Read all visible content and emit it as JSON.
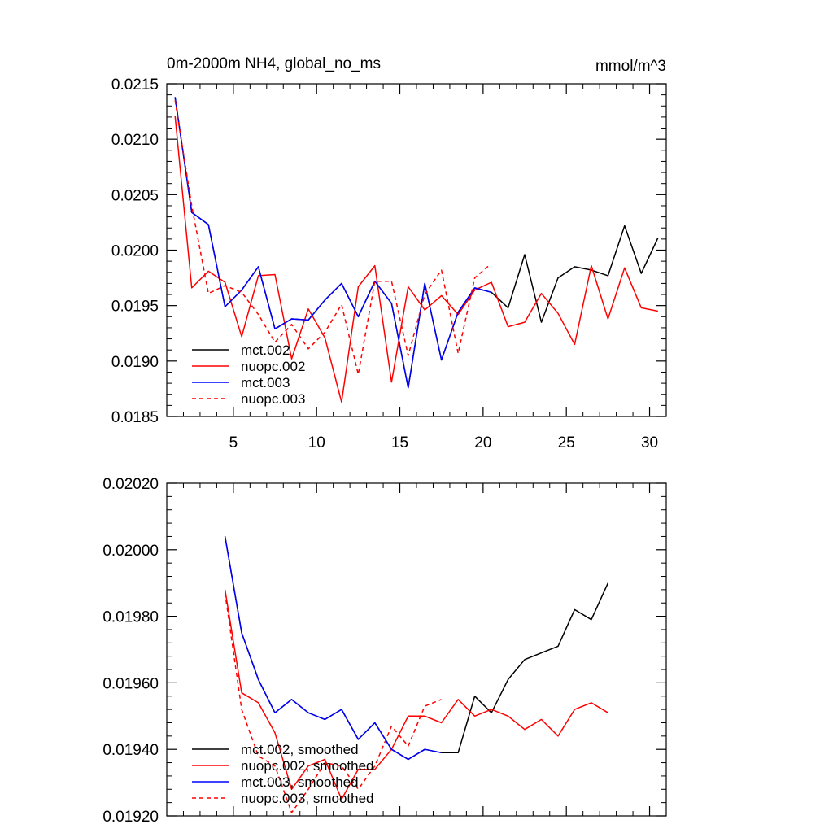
{
  "chart_data": [
    {
      "type": "line",
      "title": "0m-2000m NH4, global_no_ms",
      "units": "mmol/m^3",
      "xlim": [
        1,
        31
      ],
      "ylim": [
        0.0185,
        0.0215
      ],
      "x_ticks": [
        5,
        10,
        15,
        20,
        25,
        30
      ],
      "y_ticks": [
        0.0185,
        0.019,
        0.0195,
        0.02,
        0.0205,
        0.021,
        0.0215
      ],
      "y_tick_labels": [
        "0.0185",
        "0.0190",
        "0.0195",
        "0.0200",
        "0.0205",
        "0.0210",
        "0.0215"
      ],
      "legend_position": "bottom-left",
      "series": [
        {
          "name": "mct.002",
          "color": "#000000",
          "dash": "solid",
          "x": [
            1.5,
            2.5,
            3.5,
            4.5,
            5.5,
            6.5,
            7.5,
            8.5,
            9.5,
            10.5,
            11.5,
            12.5,
            13.5,
            14.5,
            15.5,
            16.5,
            17.5,
            18.5,
            19.5,
            20.5,
            21.5,
            22.5,
            23.5,
            24.5,
            25.5,
            26.5,
            27.5,
            28.5,
            29.5,
            30.5
          ],
          "y": [
            0.02138,
            0.02034,
            0.02023,
            0.01949,
            0.01964,
            0.01985,
            0.01929,
            0.01938,
            0.01937,
            0.01955,
            0.0197,
            0.0194,
            0.01972,
            0.01952,
            0.01876,
            0.0197,
            0.01901,
            0.01944,
            0.01966,
            0.01962,
            0.01948,
            0.01996,
            0.01935,
            0.01975,
            0.01985,
            0.01982,
            0.01977,
            0.02022,
            0.01979,
            0.02011
          ]
        },
        {
          "name": "nuopc.002",
          "color": "#ff0000",
          "dash": "solid",
          "x": [
            1.5,
            2.5,
            3.5,
            4.5,
            5.5,
            6.5,
            7.5,
            8.5,
            9.5,
            10.5,
            11.5,
            12.5,
            13.5,
            14.5,
            15.5,
            16.5,
            17.5,
            18.5,
            19.5,
            20.5,
            21.5,
            22.5,
            23.5,
            24.5,
            25.5,
            26.5,
            27.5,
            28.5,
            29.5,
            30.5
          ],
          "y": [
            0.02121,
            0.01966,
            0.01981,
            0.01971,
            0.01922,
            0.01977,
            0.01978,
            0.01902,
            0.01947,
            0.01921,
            0.01863,
            0.01967,
            0.01986,
            0.01881,
            0.01967,
            0.01946,
            0.01959,
            0.01942,
            0.01964,
            0.01971,
            0.01931,
            0.01935,
            0.01961,
            0.01943,
            0.01915,
            0.01986,
            0.01938,
            0.01984,
            0.01948,
            0.01945
          ]
        },
        {
          "name": "mct.003",
          "color": "#0000ff",
          "dash": "solid",
          "x": [
            1.5,
            2.5,
            3.5,
            4.5,
            5.5,
            6.5,
            7.5,
            8.5,
            9.5,
            10.5,
            11.5,
            12.5,
            13.5,
            14.5,
            15.5,
            16.5,
            17.5,
            18.5,
            19.5,
            20.5
          ],
          "y": [
            0.02138,
            0.02034,
            0.02023,
            0.01949,
            0.01964,
            0.01985,
            0.01929,
            0.01938,
            0.01937,
            0.01955,
            0.0197,
            0.0194,
            0.01972,
            0.01952,
            0.01876,
            0.0197,
            0.01901,
            0.01944,
            0.01966,
            0.01962
          ]
        },
        {
          "name": "nuopc.003",
          "color": "#ff0000",
          "dash": "dashed",
          "x": [
            1.5,
            2.5,
            3.5,
            4.5,
            5.5,
            6.5,
            7.5,
            8.5,
            9.5,
            10.5,
            11.5,
            12.5,
            13.5,
            14.5,
            15.5,
            16.5,
            17.5,
            18.5,
            19.5,
            20.5
          ],
          "y": [
            0.02135,
            0.0204,
            0.01961,
            0.01968,
            0.01962,
            0.01942,
            0.01917,
            0.01933,
            0.01911,
            0.01926,
            0.01951,
            0.01888,
            0.01972,
            0.01972,
            0.01905,
            0.0196,
            0.01982,
            0.01907,
            0.01975,
            0.01988
          ]
        }
      ]
    },
    {
      "type": "line",
      "title": "",
      "xlim": [
        1,
        31
      ],
      "ylim": [
        0.0192,
        0.0202
      ],
      "x_ticks": [
        5,
        10,
        15,
        20,
        25,
        30
      ],
      "y_ticks": [
        0.0192,
        0.0194,
        0.0196,
        0.0198,
        0.02,
        0.0202
      ],
      "y_tick_labels": [
        "0.01920",
        "0.01940",
        "0.01960",
        "0.01980",
        "0.02000",
        "0.02020"
      ],
      "legend_position": "bottom-left",
      "series": [
        {
          "name": "mct.002, smoothed",
          "color": "#000000",
          "dash": "solid",
          "x": [
            4.5,
            5.5,
            6.5,
            7.5,
            8.5,
            9.5,
            10.5,
            11.5,
            12.5,
            13.5,
            14.5,
            15.5,
            16.5,
            17.5,
            18.5,
            19.5,
            20.5,
            21.5,
            22.5,
            23.5,
            24.5,
            25.5,
            26.5,
            27.5
          ],
          "y": [
            0.02004,
            0.01975,
            0.01961,
            0.01951,
            0.01955,
            0.01951,
            0.01949,
            0.01952,
            0.01943,
            0.01948,
            0.0194,
            0.01937,
            0.0194,
            0.01939,
            0.01939,
            0.01956,
            0.01951,
            0.01961,
            0.01967,
            0.01969,
            0.01971,
            0.01982,
            0.01979,
            0.0199
          ]
        },
        {
          "name": "nuopc.002, smoothed",
          "color": "#ff0000",
          "dash": "solid",
          "x": [
            4.5,
            5.5,
            6.5,
            7.5,
            8.5,
            9.5,
            10.5,
            11.5,
            12.5,
            13.5,
            14.5,
            15.5,
            16.5,
            17.5,
            18.5,
            19.5,
            20.5,
            21.5,
            22.5,
            23.5,
            24.5,
            25.5,
            26.5,
            27.5
          ],
          "y": [
            0.01988,
            0.01957,
            0.01954,
            0.01945,
            0.01928,
            0.01935,
            0.01937,
            0.01925,
            0.01934,
            0.01934,
            0.0194,
            0.0195,
            0.0195,
            0.01948,
            0.01955,
            0.0195,
            0.01952,
            0.0195,
            0.01946,
            0.01949,
            0.01944,
            0.01952,
            0.01954,
            0.01951
          ]
        },
        {
          "name": "mct.003, smoothed",
          "color": "#0000ff",
          "dash": "solid",
          "x": [
            4.5,
            5.5,
            6.5,
            7.5,
            8.5,
            9.5,
            10.5,
            11.5,
            12.5,
            13.5,
            14.5,
            15.5,
            16.5,
            17.5
          ],
          "y": [
            0.02004,
            0.01975,
            0.01961,
            0.01951,
            0.01955,
            0.01951,
            0.01949,
            0.01952,
            0.01943,
            0.01948,
            0.0194,
            0.01937,
            0.0194,
            0.01939
          ]
        },
        {
          "name": "nuopc.003, smoothed",
          "color": "#ff0000",
          "dash": "dashed",
          "x": [
            4.5,
            5.5,
            6.5,
            7.5,
            8.5,
            9.5,
            10.5,
            11.5,
            12.5,
            13.5,
            14.5,
            15.5,
            16.5,
            17.5
          ],
          "y": [
            0.01987,
            0.01952,
            0.01938,
            0.01935,
            0.01921,
            0.01928,
            0.01936,
            0.01935,
            0.01928,
            0.01935,
            0.01947,
            0.01941,
            0.01953,
            0.01955
          ]
        }
      ]
    }
  ]
}
